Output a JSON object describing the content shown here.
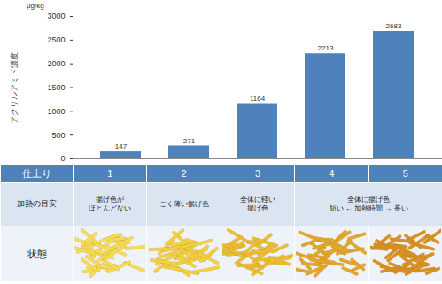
{
  "chart_data": {
    "type": "bar",
    "categories": [
      "1",
      "2",
      "3",
      "4",
      "5"
    ],
    "values": [
      147,
      271,
      1164,
      2213,
      2683
    ],
    "color": "#4f81bd",
    "ylabel": "アクリルアミド濃度",
    "annotations": [
      "μg/kg"
    ],
    "ylim": [
      0,
      3000
    ],
    "yticks": [
      0,
      500,
      1000,
      1500,
      2000,
      2500,
      3000
    ],
    "grid": false,
    "data_labels": true,
    "tick_labels": "y"
  },
  "table": {
    "header": "仕上り",
    "rows": [
      {
        "label": "加熱の目安",
        "cells": [
          "揚げ色が\nほとんどない",
          "ごく薄い揚げ色",
          "全体に軽い\n揚げ色",
          "全体に揚げ色\n短い ← 加熱時間 → 長い"
        ]
      },
      {
        "label": "状態"
      }
    ]
  }
}
